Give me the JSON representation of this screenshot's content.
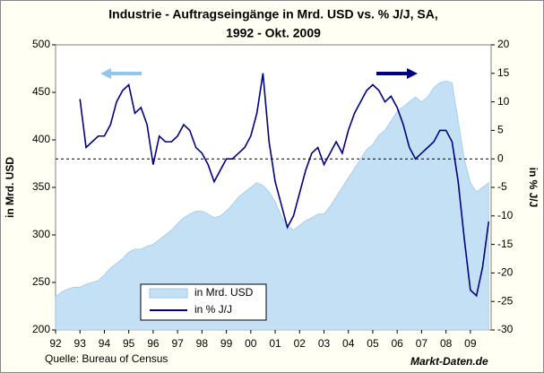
{
  "chart_data": {
    "type": "area-line",
    "title": "Industrie - Auftragseingänge in Mrd. USD vs. % J/J, SA,",
    "subtitle": "1992 - Okt. 2009",
    "y_label": "in Mrd. USD",
    "y2_label": "in % J/J",
    "source": "Quelle: Bureau of Census",
    "credit": "Markt-Daten.de",
    "xlim": [
      1992,
      2009.85
    ],
    "xticks": [
      {
        "value": 1992,
        "label": "92"
      },
      {
        "value": 1993,
        "label": "93"
      },
      {
        "value": 1994,
        "label": "94"
      },
      {
        "value": 1995,
        "label": "95"
      },
      {
        "value": 1996,
        "label": "96"
      },
      {
        "value": 1997,
        "label": "97"
      },
      {
        "value": 1998,
        "label": "98"
      },
      {
        "value": 1999,
        "label": "99"
      },
      {
        "value": 2000,
        "label": "00"
      },
      {
        "value": 2001,
        "label": "01"
      },
      {
        "value": 2002,
        "label": "02"
      },
      {
        "value": 2003,
        "label": "03"
      },
      {
        "value": 2004,
        "label": "04"
      },
      {
        "value": 2005,
        "label": "05"
      },
      {
        "value": 2006,
        "label": "06"
      },
      {
        "value": 2007,
        "label": "07"
      },
      {
        "value": 2008,
        "label": "08"
      },
      {
        "value": 2009,
        "label": "09"
      }
    ],
    "ylim": [
      200,
      500
    ],
    "yticks": [
      200,
      250,
      300,
      350,
      400,
      450,
      500
    ],
    "y2lim": [
      -30,
      20
    ],
    "y2ticks": [
      -30,
      -25,
      -20,
      -15,
      -10,
      -5,
      0,
      5,
      10,
      15,
      20
    ],
    "series": [
      {
        "name": "in Mrd. USD",
        "kind": "area",
        "color": "#c4e0f4",
        "x": [
          1992,
          1992.25,
          1992.5,
          1992.75,
          1993,
          1993.25,
          1993.5,
          1993.75,
          1994,
          1994.25,
          1994.5,
          1994.75,
          1995,
          1995.25,
          1995.5,
          1995.75,
          1996,
          1996.25,
          1996.5,
          1996.75,
          1997,
          1997.25,
          1997.5,
          1997.75,
          1998,
          1998.25,
          1998.5,
          1998.75,
          1999,
          1999.25,
          1999.5,
          1999.75,
          2000,
          2000.25,
          2000.5,
          2000.75,
          2001,
          2001.25,
          2001.5,
          2001.75,
          2002,
          2002.25,
          2002.5,
          2002.75,
          2003,
          2003.25,
          2003.5,
          2003.75,
          2004,
          2004.25,
          2004.5,
          2004.75,
          2005,
          2005.25,
          2005.5,
          2005.75,
          2006,
          2006.25,
          2006.5,
          2006.75,
          2007,
          2007.25,
          2007.5,
          2007.75,
          2008,
          2008.25,
          2008.5,
          2008.75,
          2009,
          2009.25,
          2009.5,
          2009.75
        ],
        "values": [
          235,
          240,
          243,
          245,
          245,
          248,
          250,
          252,
          258,
          265,
          270,
          275,
          282,
          285,
          285,
          288,
          290,
          295,
          300,
          305,
          312,
          318,
          322,
          325,
          325,
          322,
          318,
          320,
          325,
          332,
          340,
          345,
          350,
          355,
          352,
          345,
          335,
          320,
          310,
          305,
          310,
          315,
          318,
          322,
          322,
          330,
          340,
          350,
          360,
          370,
          380,
          390,
          395,
          405,
          410,
          420,
          430,
          435,
          440,
          445,
          440,
          445,
          455,
          460,
          462,
          460,
          420,
          380,
          355,
          345,
          350,
          355
        ]
      },
      {
        "name": "in % J/J",
        "kind": "line",
        "axis": "y2",
        "color": "#000080",
        "x": [
          1993,
          1993.25,
          1993.5,
          1993.75,
          1994,
          1994.25,
          1994.5,
          1994.75,
          1995,
          1995.25,
          1995.5,
          1995.75,
          1996,
          1996.25,
          1996.5,
          1996.75,
          1997,
          1997.25,
          1997.5,
          1997.75,
          1998,
          1998.25,
          1998.5,
          1998.75,
          1999,
          1999.25,
          1999.5,
          1999.75,
          2000,
          2000.25,
          2000.5,
          2000.75,
          2001,
          2001.25,
          2001.5,
          2001.75,
          2002,
          2002.25,
          2002.5,
          2002.75,
          2003,
          2003.25,
          2003.5,
          2003.75,
          2004,
          2004.25,
          2004.5,
          2004.75,
          2005,
          2005.25,
          2005.5,
          2005.75,
          2006,
          2006.25,
          2006.5,
          2006.75,
          2007,
          2007.25,
          2007.5,
          2007.75,
          2008,
          2008.25,
          2008.5,
          2008.75,
          2009,
          2009.25,
          2009.5,
          2009.75
        ],
        "values": [
          10.5,
          2,
          3,
          4,
          4,
          6,
          10,
          12,
          13,
          8,
          9,
          6,
          -1,
          4,
          3,
          3,
          4,
          6,
          5,
          2,
          1,
          -1,
          -4,
          -2,
          0,
          0,
          1,
          2,
          4,
          8,
          15,
          3,
          -4,
          -8,
          -12,
          -10,
          -6,
          -2,
          1,
          2,
          -1,
          1,
          3,
          1,
          5,
          8,
          10,
          12,
          13,
          12,
          10,
          11,
          9,
          6,
          2,
          0,
          1,
          2,
          3,
          5,
          5,
          3,
          -4,
          -14,
          -23,
          -24,
          -19,
          -11
        ]
      }
    ]
  }
}
